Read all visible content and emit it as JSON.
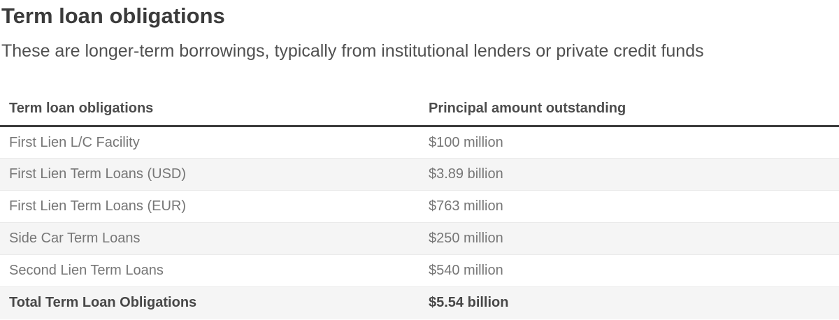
{
  "page": {
    "title": "Term loan obligations",
    "subtitle": "These are longer-term borrowings, typically from institutional lenders or private credit funds"
  },
  "table": {
    "columns": [
      {
        "label": "Term loan obligations"
      },
      {
        "label": "Principal amount outstanding"
      }
    ],
    "rows": [
      {
        "label": "First Lien L/C Facility",
        "value": "$100 million"
      },
      {
        "label": "First Lien Term Loans (USD)",
        "value": "$3.89 billion"
      },
      {
        "label": "First Lien Term Loans (EUR)",
        "value": "$763 million"
      },
      {
        "label": "Side Car Term Loans",
        "value": "$250 million"
      },
      {
        "label": "Second Lien Term Loans",
        "value": "$540 million"
      }
    ],
    "total_row": {
      "label": "Total Term Loan Obligations",
      "value": "$5.54 billion"
    }
  },
  "colors": {
    "title_text": "#3b3b3b",
    "subtitle_text": "#505050",
    "header_text": "#4d4d4d",
    "header_rule": "#3b3b3b",
    "cell_text": "#767676",
    "total_text": "#474747",
    "row_stripe": "#f5f5f5",
    "row_border": "#eaeaea",
    "background": "#ffffff"
  }
}
